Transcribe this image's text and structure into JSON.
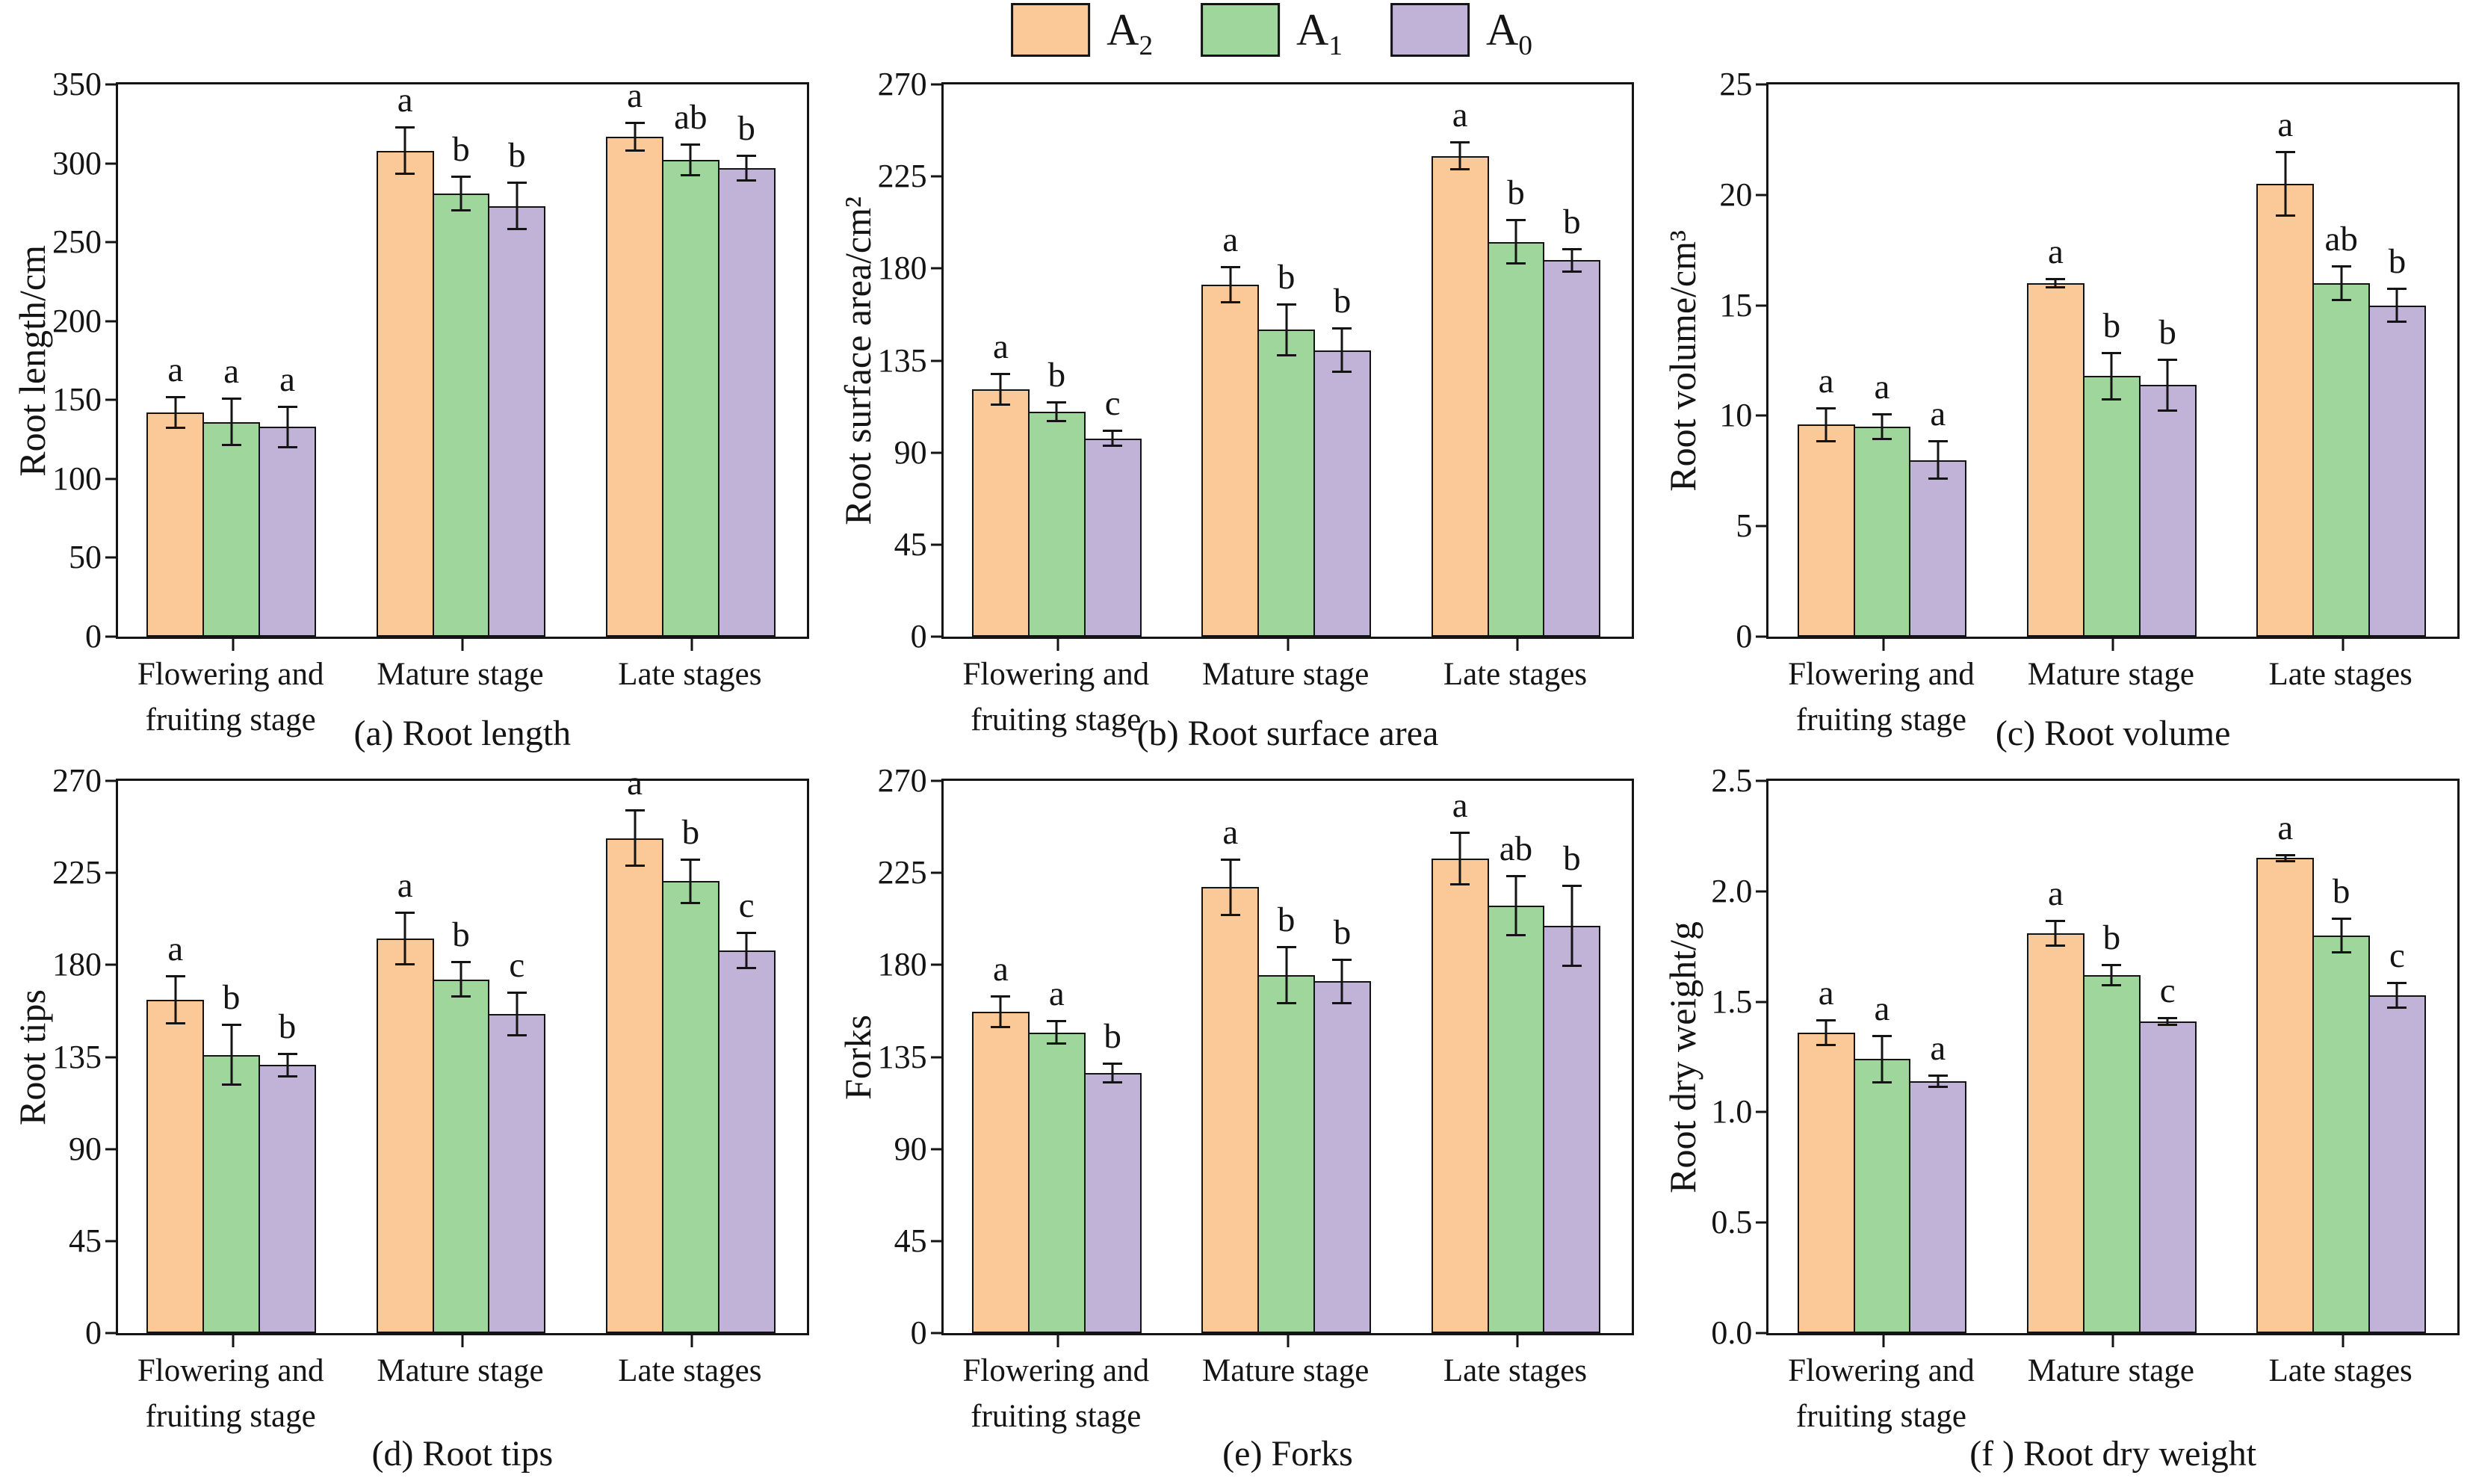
{
  "figure": {
    "background": "#FFFFFF",
    "ink_color": "#141414",
    "legend": {
      "position": "top-center",
      "items": [
        {
          "name": "A2",
          "label": "A₂",
          "label_base": "A",
          "label_sub": "2",
          "color": "#FBC897"
        },
        {
          "name": "A1",
          "label": "A₁",
          "label_base": "A",
          "label_sub": "1",
          "color": "#9ED69B"
        },
        {
          "name": "A0",
          "label": "A₀",
          "label_base": "A",
          "label_sub": "0",
          "color": "#C1B2D7"
        }
      ]
    }
  },
  "chart_data": [
    {
      "id": "a",
      "type": "bar",
      "caption": "(a) Root length",
      "ylabel": "Root length/cm",
      "xlabel": "",
      "ylim": [
        0,
        350
      ],
      "ytick_step": 50,
      "ytick_decimals": 0,
      "grid": false,
      "error_bars": true,
      "categories": [
        "Flowering and fruiting stage",
        "Mature stage",
        "Late stages"
      ],
      "categories_display": [
        [
          "Flowering and",
          "fruiting stage"
        ],
        [
          "Mature stage"
        ],
        [
          "Late stages"
        ]
      ],
      "series": [
        {
          "name": "A₂",
          "color": "#FBC897",
          "values": [
            142,
            308,
            317
          ],
          "errors": [
            9,
            14,
            8
          ],
          "sig_letters": [
            "a",
            "a",
            "a"
          ]
        },
        {
          "name": "A₁",
          "color": "#9ED69B",
          "values": [
            136,
            281,
            302
          ],
          "errors": [
            14,
            10,
            9
          ],
          "sig_letters": [
            "a",
            "b",
            "ab"
          ]
        },
        {
          "name": "A₀",
          "color": "#C1B2D7",
          "values": [
            133,
            273,
            297
          ],
          "errors": [
            12,
            14,
            7
          ],
          "sig_letters": [
            "a",
            "b",
            "b"
          ]
        }
      ]
    },
    {
      "id": "b",
      "type": "bar",
      "caption": "(b) Root surface area",
      "ylabel": "Root surface area/cm²",
      "xlabel": "",
      "ylim": [
        0,
        270
      ],
      "ytick_step": 45,
      "ytick_decimals": 0,
      "grid": false,
      "error_bars": true,
      "categories": [
        "Flowering and fruiting stage",
        "Mature stage",
        "Late stages"
      ],
      "categories_display": [
        [
          "Flowering and",
          "fruiting stage"
        ],
        [
          "Mature stage"
        ],
        [
          "Late stages"
        ]
      ],
      "series": [
        {
          "name": "A₂",
          "color": "#FBC897",
          "values": [
            121,
            172,
            235
          ],
          "errors": [
            7,
            8,
            6
          ],
          "sig_letters": [
            "a",
            "a",
            "a"
          ]
        },
        {
          "name": "A₁",
          "color": "#9ED69B",
          "values": [
            110,
            150,
            193
          ],
          "errors": [
            4,
            12,
            10
          ],
          "sig_letters": [
            "b",
            "b",
            "b"
          ]
        },
        {
          "name": "A₀",
          "color": "#C1B2D7",
          "values": [
            97,
            140,
            184
          ],
          "errors": [
            3,
            10,
            5
          ],
          "sig_letters": [
            "c",
            "b",
            "b"
          ]
        }
      ]
    },
    {
      "id": "c",
      "type": "bar",
      "caption": "(c) Root volume",
      "ylabel": "Root volume/cm³",
      "xlabel": "",
      "ylim": [
        0,
        25
      ],
      "ytick_step": 5,
      "ytick_decimals": 0,
      "grid": false,
      "error_bars": true,
      "categories": [
        "Flowering and fruiting stage",
        "Mature stage",
        "Late stages"
      ],
      "categories_display": [
        [
          "Flowering and",
          "fruiting stage"
        ],
        [
          "Mature stage"
        ],
        [
          "Late stages"
        ]
      ],
      "series": [
        {
          "name": "A₂",
          "color": "#FBC897",
          "values": [
            9.6,
            16.0,
            20.5
          ],
          "errors": [
            0.7,
            0.15,
            1.4
          ],
          "sig_letters": [
            "a",
            "a",
            "a"
          ]
        },
        {
          "name": "A₁",
          "color": "#9ED69B",
          "values": [
            9.5,
            11.8,
            16.0
          ],
          "errors": [
            0.5,
            1.0,
            0.7
          ],
          "sig_letters": [
            "a",
            "b",
            "ab"
          ]
        },
        {
          "name": "A₀",
          "color": "#C1B2D7",
          "values": [
            8.0,
            11.4,
            15.0
          ],
          "errors": [
            0.8,
            1.1,
            0.7
          ],
          "sig_letters": [
            "a",
            "b",
            "b"
          ]
        }
      ]
    },
    {
      "id": "d",
      "type": "bar",
      "caption": "(d) Root tips",
      "ylabel": "Root tips",
      "xlabel": "",
      "ylim": [
        0,
        270
      ],
      "ytick_step": 45,
      "ytick_decimals": 0,
      "grid": false,
      "error_bars": true,
      "categories": [
        "Flowering and fruiting stage",
        "Mature stage",
        "Late stages"
      ],
      "categories_display": [
        [
          "Flowering and",
          "fruiting stage"
        ],
        [
          "Mature stage"
        ],
        [
          "Late stages"
        ]
      ],
      "series": [
        {
          "name": "A₂",
          "color": "#FBC897",
          "values": [
            163,
            193,
            242
          ],
          "errors": [
            11,
            12,
            13
          ],
          "sig_letters": [
            "a",
            "a",
            "a"
          ]
        },
        {
          "name": "A₁",
          "color": "#9ED69B",
          "values": [
            136,
            173,
            221
          ],
          "errors": [
            14,
            8,
            10
          ],
          "sig_letters": [
            "b",
            "b",
            "b"
          ]
        },
        {
          "name": "A₀",
          "color": "#C1B2D7",
          "values": [
            131,
            156,
            187
          ],
          "errors": [
            5,
            10,
            8
          ],
          "sig_letters": [
            "b",
            "c",
            "c"
          ]
        }
      ]
    },
    {
      "id": "e",
      "type": "bar",
      "caption": "(e) Forks",
      "ylabel": "Forks",
      "xlabel": "",
      "ylim": [
        0,
        270
      ],
      "ytick_step": 45,
      "ytick_decimals": 0,
      "grid": false,
      "error_bars": true,
      "categories": [
        "Flowering and fruiting stage",
        "Mature stage",
        "Late stages"
      ],
      "categories_display": [
        [
          "Flowering and",
          "fruiting stage"
        ],
        [
          "Mature stage"
        ],
        [
          "Late stages"
        ]
      ],
      "series": [
        {
          "name": "A₂",
          "color": "#FBC897",
          "values": [
            157,
            218,
            232
          ],
          "errors": [
            7,
            13,
            12
          ],
          "sig_letters": [
            "a",
            "a",
            "a"
          ]
        },
        {
          "name": "A₁",
          "color": "#9ED69B",
          "values": [
            147,
            175,
            209
          ],
          "errors": [
            5,
            13,
            14
          ],
          "sig_letters": [
            "a",
            "b",
            "ab"
          ]
        },
        {
          "name": "A₀",
          "color": "#C1B2D7",
          "values": [
            127,
            172,
            199
          ],
          "errors": [
            4,
            10,
            19
          ],
          "sig_letters": [
            "b",
            "b",
            "b"
          ]
        }
      ]
    },
    {
      "id": "f",
      "type": "bar",
      "caption": "(f ) Root dry weight",
      "ylabel": "Root dry weight/g",
      "xlabel": "",
      "ylim": [
        0,
        2.5
      ],
      "ytick_step": 0.5,
      "ytick_decimals": 1,
      "grid": false,
      "error_bars": true,
      "categories": [
        "Flowering and fruiting stage",
        "Mature stage",
        "Late stages"
      ],
      "categories_display": [
        [
          "Flowering and",
          "fruiting stage"
        ],
        [
          "Mature stage"
        ],
        [
          "Late stages"
        ]
      ],
      "series": [
        {
          "name": "A₂",
          "color": "#FBC897",
          "values": [
            1.36,
            1.81,
            2.15
          ],
          "errors": [
            0.05,
            0.05,
            0.01
          ],
          "sig_letters": [
            "a",
            "a",
            "a"
          ]
        },
        {
          "name": "A₁",
          "color": "#9ED69B",
          "values": [
            1.24,
            1.62,
            1.8
          ],
          "errors": [
            0.1,
            0.04,
            0.07
          ],
          "sig_letters": [
            "a",
            "b",
            "b"
          ]
        },
        {
          "name": "A₀",
          "color": "#C1B2D7",
          "values": [
            1.14,
            1.41,
            1.53
          ],
          "errors": [
            0.02,
            0.01,
            0.05
          ],
          "sig_letters": [
            "a",
            "c",
            "c"
          ]
        }
      ]
    }
  ]
}
